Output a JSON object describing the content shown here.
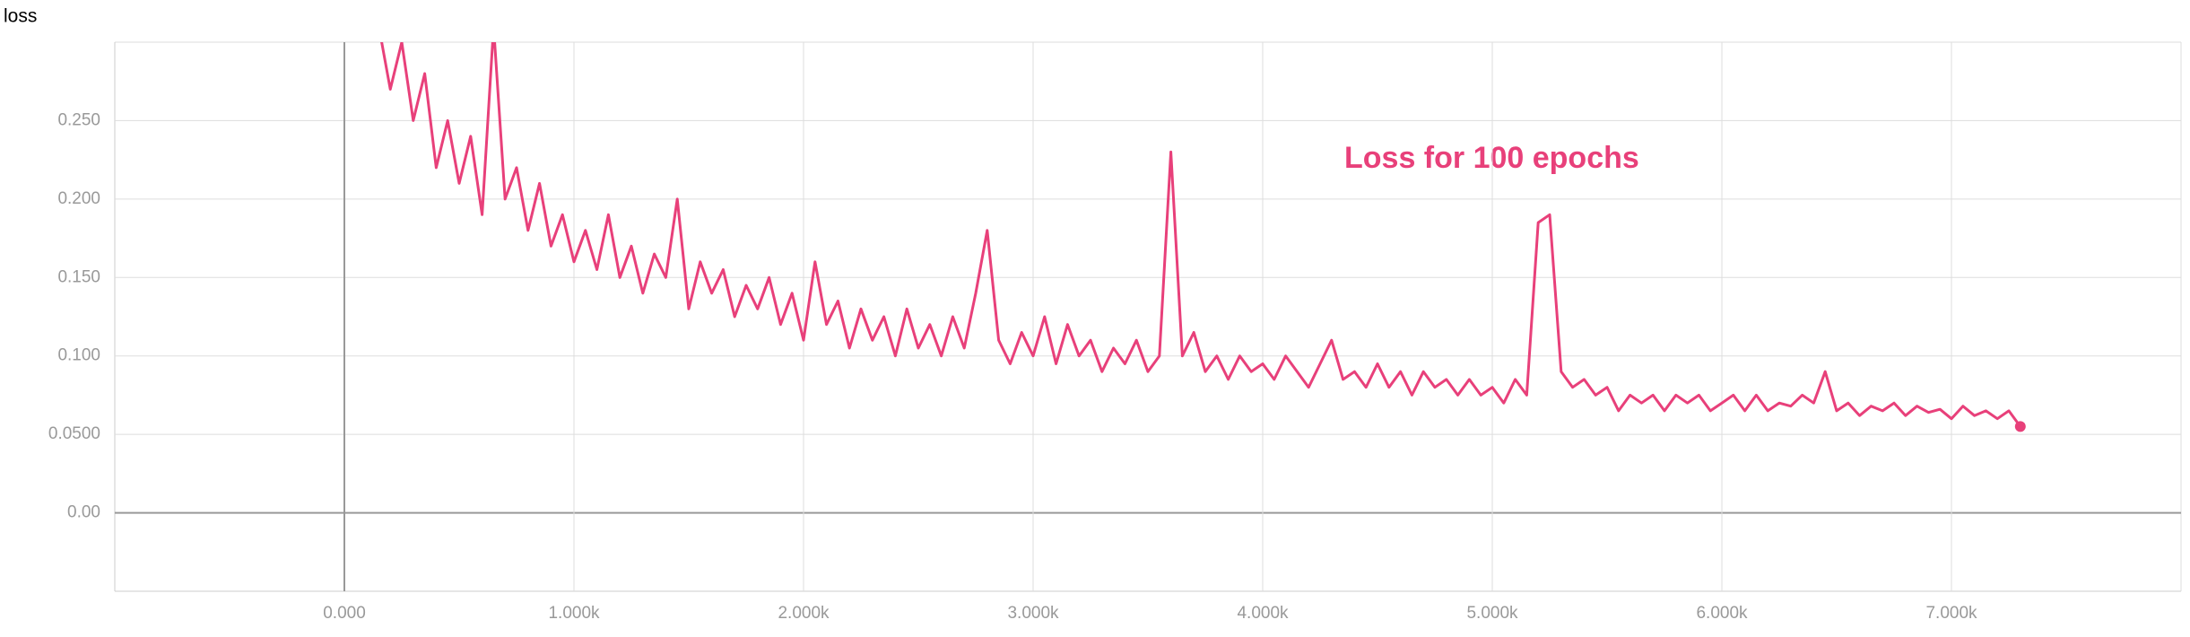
{
  "chart_data": {
    "type": "line",
    "title": "loss",
    "annotation": "Loss for 100 epochs",
    "x": [
      150,
      200,
      250,
      300,
      350,
      400,
      450,
      500,
      550,
      600,
      650,
      700,
      750,
      800,
      850,
      900,
      950,
      1000,
      1050,
      1100,
      1150,
      1200,
      1250,
      1300,
      1350,
      1400,
      1450,
      1500,
      1550,
      1600,
      1650,
      1700,
      1750,
      1800,
      1850,
      1900,
      1950,
      2000,
      2050,
      2100,
      2150,
      2200,
      2250,
      2300,
      2350,
      2400,
      2450,
      2500,
      2550,
      2600,
      2650,
      2700,
      2750,
      2800,
      2850,
      2900,
      2950,
      3000,
      3050,
      3100,
      3150,
      3200,
      3250,
      3300,
      3350,
      3400,
      3450,
      3500,
      3550,
      3600,
      3650,
      3700,
      3750,
      3800,
      3850,
      3900,
      3950,
      4000,
      4050,
      4100,
      4150,
      4200,
      4250,
      4300,
      4350,
      4400,
      4450,
      4500,
      4550,
      4600,
      4650,
      4700,
      4750,
      4800,
      4850,
      4900,
      4950,
      5000,
      5050,
      5100,
      5150,
      5200,
      5250,
      5300,
      5350,
      5400,
      5450,
      5500,
      5550,
      5600,
      5650,
      5700,
      5750,
      5800,
      5850,
      5900,
      5950,
      6000,
      6050,
      6100,
      6150,
      6200,
      6250,
      6300,
      6350,
      6400,
      6450,
      6500,
      6550,
      6600,
      6650,
      6700,
      6750,
      6800,
      6850,
      6900,
      6950,
      7000,
      7050,
      7100,
      7150,
      7200,
      7250,
      7300
    ],
    "series": [
      {
        "color": "#e8407a",
        "values": [
          0.31,
          0.27,
          0.3,
          0.25,
          0.28,
          0.22,
          0.25,
          0.21,
          0.24,
          0.19,
          0.31,
          0.2,
          0.22,
          0.18,
          0.21,
          0.17,
          0.19,
          0.16,
          0.18,
          0.155,
          0.19,
          0.15,
          0.17,
          0.14,
          0.165,
          0.15,
          0.2,
          0.13,
          0.16,
          0.14,
          0.155,
          0.125,
          0.145,
          0.13,
          0.15,
          0.12,
          0.14,
          0.11,
          0.16,
          0.12,
          0.135,
          0.105,
          0.13,
          0.11,
          0.125,
          0.1,
          0.13,
          0.105,
          0.12,
          0.1,
          0.125,
          0.105,
          0.14,
          0.18,
          0.11,
          0.095,
          0.115,
          0.1,
          0.125,
          0.095,
          0.12,
          0.1,
          0.11,
          0.09,
          0.105,
          0.095,
          0.11,
          0.09,
          0.1,
          0.23,
          0.1,
          0.115,
          0.09,
          0.1,
          0.085,
          0.1,
          0.09,
          0.095,
          0.085,
          0.1,
          0.09,
          0.08,
          0.095,
          0.11,
          0.085,
          0.09,
          0.08,
          0.095,
          0.08,
          0.09,
          0.075,
          0.09,
          0.08,
          0.085,
          0.075,
          0.085,
          0.075,
          0.08,
          0.07,
          0.085,
          0.075,
          0.185,
          0.19,
          0.09,
          0.08,
          0.085,
          0.075,
          0.08,
          0.065,
          0.075,
          0.07,
          0.075,
          0.065,
          0.075,
          0.07,
          0.075,
          0.065,
          0.07,
          0.075,
          0.065,
          0.075,
          0.065,
          0.07,
          0.068,
          0.075,
          0.07,
          0.09,
          0.065,
          0.07,
          0.062,
          0.068,
          0.065,
          0.07,
          0.062,
          0.068,
          0.064,
          0.066,
          0.06,
          0.068,
          0.062,
          0.065,
          0.06,
          0.065,
          0.055
        ]
      }
    ],
    "xlim": [
      -1000,
      8000
    ],
    "xticks": [
      {
        "value": 0,
        "label": "0.000"
      },
      {
        "value": 1000,
        "label": "1.000k"
      },
      {
        "value": 2000,
        "label": "2.000k"
      },
      {
        "value": 3000,
        "label": "3.000k"
      },
      {
        "value": 4000,
        "label": "4.000k"
      },
      {
        "value": 5000,
        "label": "5.000k"
      },
      {
        "value": 6000,
        "label": "6.000k"
      },
      {
        "value": 7000,
        "label": "7.000k"
      }
    ],
    "ylim": [
      -0.05,
      0.3
    ],
    "yticks": [
      {
        "value": 0,
        "label": "0.00"
      },
      {
        "value": 0.05,
        "label": "0.0500"
      },
      {
        "value": 0.1,
        "label": "0.100"
      },
      {
        "value": 0.15,
        "label": "0.150"
      },
      {
        "value": 0.2,
        "label": "0.200"
      },
      {
        "value": 0.25,
        "label": "0.250"
      }
    ],
    "grid": true
  }
}
